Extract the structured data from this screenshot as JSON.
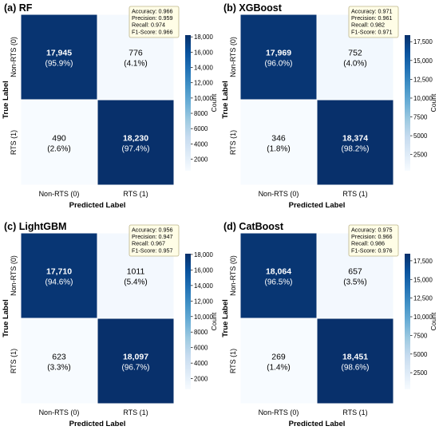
{
  "colors": {
    "dark": "#08306b",
    "light": "#f7fbff",
    "stats_box_fill": "#fffde6",
    "stats_box_stroke": "#bdb58a",
    "cell_text_dark_bg": "#ffffff",
    "cell_text_light_bg": "#000000"
  },
  "chart_data": [
    {
      "type": "heatmap",
      "title": "(a) RF",
      "xlabel": "Predicted Label",
      "ylabel": "True Label",
      "x_categories": [
        "Non-RTS (0)",
        "RTS (1)"
      ],
      "y_categories": [
        "Non-RTS (0)",
        "RTS (1)"
      ],
      "cells": [
        {
          "count": 17945,
          "count_label": "17,945",
          "percent_label": "(95.9%)"
        },
        {
          "count": 776,
          "count_label": "776",
          "percent_label": "(4.1%)"
        },
        {
          "count": 490,
          "count_label": "490",
          "percent_label": "(2.6%)"
        },
        {
          "count": 18230,
          "count_label": "18,230",
          "percent_label": "(97.4%)"
        }
      ],
      "stats": [
        "Accuracy: 0.966",
        "Precision: 0.959",
        "Recall: 0.974",
        "F1-Score: 0.966"
      ],
      "colorbar": {
        "label": "Count",
        "min": 490,
        "max": 18230,
        "ticks": [
          18000,
          16000,
          14000,
          12000,
          10000,
          8000,
          6000,
          4000,
          2000
        ],
        "tick_labels": [
          "18,000",
          "16,000",
          "14,000",
          "12,000",
          "10,000",
          "8000",
          "6000",
          "4000",
          "2000"
        ]
      }
    },
    {
      "type": "heatmap",
      "title": "(b) XGBoost",
      "xlabel": "Predicted Label",
      "ylabel": "True Label",
      "x_categories": [
        "Non-RTS (0)",
        "RTS (1)"
      ],
      "y_categories": [
        "Non-RTS (0)",
        "RTS (1)"
      ],
      "cells": [
        {
          "count": 17969,
          "count_label": "17,969",
          "percent_label": "(96.0%)"
        },
        {
          "count": 752,
          "count_label": "752",
          "percent_label": "(4.0%)"
        },
        {
          "count": 346,
          "count_label": "346",
          "percent_label": "(1.8%)"
        },
        {
          "count": 18374,
          "count_label": "18,374",
          "percent_label": "(98.2%)"
        }
      ],
      "stats": [
        "Accuracy: 0.971",
        "Precision: 0.961",
        "Recall: 0.982",
        "F1-Score: 0.971"
      ],
      "colorbar": {
        "label": "Count",
        "min": 346,
        "max": 18374,
        "ticks": [
          17500,
          15000,
          12500,
          10000,
          7500,
          5000,
          2500
        ],
        "tick_labels": [
          "17,500",
          "15,000",
          "12,500",
          "10,000",
          "7500",
          "5000",
          "2500"
        ]
      }
    },
    {
      "type": "heatmap",
      "title": "(c) LightGBM",
      "xlabel": "Predicted Label",
      "ylabel": "True Label",
      "x_categories": [
        "Non-RTS (0)",
        "RTS (1)"
      ],
      "y_categories": [
        "Non-RTS (0)",
        "RTS (1)"
      ],
      "cells": [
        {
          "count": 17710,
          "count_label": "17,710",
          "percent_label": "(94.6%)"
        },
        {
          "count": 1011,
          "count_label": "1011",
          "percent_label": "(5.4%)"
        },
        {
          "count": 623,
          "count_label": "623",
          "percent_label": "(3.3%)"
        },
        {
          "count": 18097,
          "count_label": "18,097",
          "percent_label": "(96.7%)"
        }
      ],
      "stats": [
        "Accuracy: 0.956",
        "Precision: 0.947",
        "Recall: 0.967",
        "F1-Score: 0.957"
      ],
      "colorbar": {
        "label": "Count",
        "min": 623,
        "max": 18097,
        "ticks": [
          18000,
          16000,
          14000,
          12000,
          10000,
          8000,
          6000,
          4000,
          2000
        ],
        "tick_labels": [
          "18,000",
          "16,000",
          "14,000",
          "12,000",
          "10,000",
          "8000",
          "6000",
          "4000",
          "2000"
        ]
      }
    },
    {
      "type": "heatmap",
      "title": "(d) CatBoost",
      "xlabel": "Predicted Label",
      "ylabel": "True Label",
      "x_categories": [
        "Non-RTS (0)",
        "RTS (1)"
      ],
      "y_categories": [
        "Non-RTS (0)",
        "RTS (1)"
      ],
      "cells": [
        {
          "count": 18064,
          "count_label": "18,064",
          "percent_label": "(96.5%)"
        },
        {
          "count": 657,
          "count_label": "657",
          "percent_label": "(3.5%)"
        },
        {
          "count": 269,
          "count_label": "269",
          "percent_label": "(1.4%)"
        },
        {
          "count": 18451,
          "count_label": "18,451",
          "percent_label": "(98.6%)"
        }
      ],
      "stats": [
        "Accuracy: 0.975",
        "Precision: 0.966",
        "Recall: 0.986",
        "F1-Score: 0.976"
      ],
      "colorbar": {
        "label": "Count",
        "min": 269,
        "max": 18451,
        "ticks": [
          17500,
          15000,
          12500,
          10000,
          7500,
          5000,
          2500
        ],
        "tick_labels": [
          "17,500",
          "15,000",
          "12,500",
          "10,000",
          "7500",
          "5000",
          "2500"
        ]
      }
    }
  ]
}
